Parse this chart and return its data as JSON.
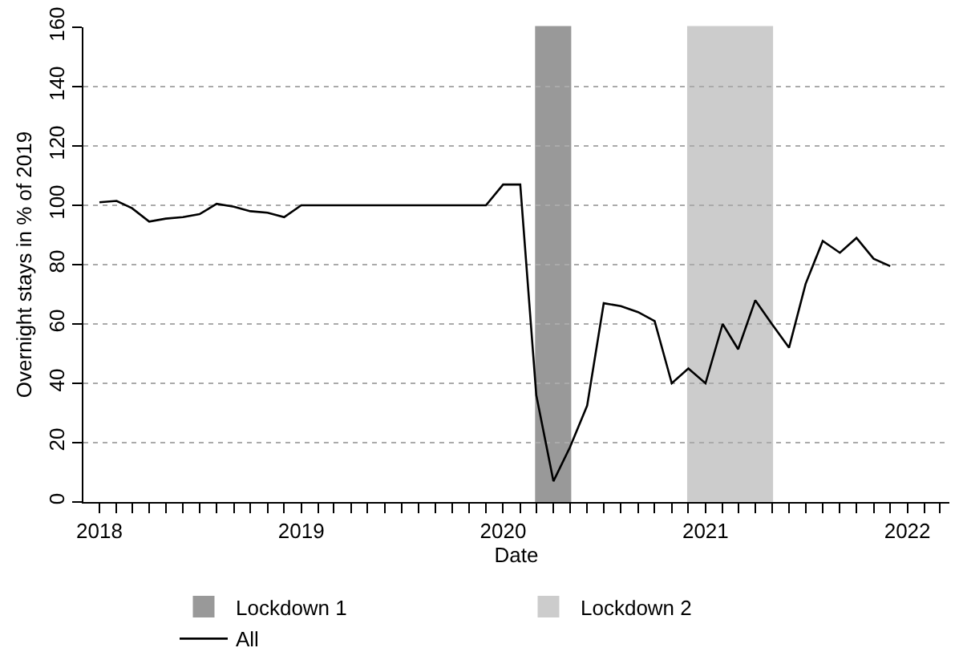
{
  "chart_data": {
    "type": "line",
    "xlabel": "Date",
    "ylabel": "Overnight stays in % of 2019",
    "x": [
      "2018-01",
      "2018-02",
      "2018-03",
      "2018-04",
      "2018-05",
      "2018-06",
      "2018-07",
      "2018-08",
      "2018-09",
      "2018-10",
      "2018-11",
      "2018-12",
      "2019-01",
      "2019-02",
      "2019-03",
      "2019-04",
      "2019-05",
      "2019-06",
      "2019-07",
      "2019-08",
      "2019-09",
      "2019-10",
      "2019-11",
      "2019-12",
      "2020-01",
      "2020-02",
      "2020-03",
      "2020-04",
      "2020-05",
      "2020-06",
      "2020-07",
      "2020-08",
      "2020-09",
      "2020-10",
      "2020-11",
      "2020-12",
      "2021-01",
      "2021-02",
      "2021-03",
      "2021-04",
      "2021-05",
      "2021-06",
      "2021-07",
      "2021-08",
      "2021-09",
      "2021-10",
      "2021-11",
      "2021-12"
    ],
    "series": [
      {
        "name": "All",
        "color": "#000000",
        "values": [
          101,
          101.5,
          99,
          94.5,
          95.5,
          96,
          97,
          100.5,
          99.5,
          98,
          97.5,
          96,
          100,
          100,
          100,
          100,
          100,
          100,
          100,
          100,
          100,
          100,
          100,
          100,
          107,
          107,
          36,
          7,
          18.5,
          32.5,
          67,
          66,
          64,
          61,
          40,
          45,
          40,
          60,
          51.5,
          68,
          60,
          52,
          73.5,
          88,
          84,
          89,
          82,
          79.5
        ]
      }
    ],
    "xlim": [
      "2017-12-03",
      "2022-03-18"
    ],
    "xticks": [
      {
        "value": "2018-01",
        "label": "2018"
      },
      {
        "value": "2018-02",
        "label": null
      },
      {
        "value": "2018-03",
        "label": null
      },
      {
        "value": "2018-04",
        "label": null
      },
      {
        "value": "2018-05",
        "label": null
      },
      {
        "value": "2018-06",
        "label": null
      },
      {
        "value": "2018-07",
        "label": null
      },
      {
        "value": "2018-08",
        "label": null
      },
      {
        "value": "2018-09",
        "label": null
      },
      {
        "value": "2018-10",
        "label": null
      },
      {
        "value": "2018-11",
        "label": null
      },
      {
        "value": "2018-12",
        "label": null
      },
      {
        "value": "2019-01",
        "label": "2019"
      },
      {
        "value": "2019-02",
        "label": null
      },
      {
        "value": "2019-03",
        "label": null
      },
      {
        "value": "2019-04",
        "label": null
      },
      {
        "value": "2019-05",
        "label": null
      },
      {
        "value": "2019-06",
        "label": null
      },
      {
        "value": "2019-07",
        "label": null
      },
      {
        "value": "2019-08",
        "label": null
      },
      {
        "value": "2019-09",
        "label": null
      },
      {
        "value": "2019-10",
        "label": null
      },
      {
        "value": "2019-11",
        "label": null
      },
      {
        "value": "2019-12",
        "label": null
      },
      {
        "value": "2020-01",
        "label": "2020"
      },
      {
        "value": "2020-02",
        "label": null
      },
      {
        "value": "2020-03",
        "label": null
      },
      {
        "value": "2020-04",
        "label": null
      },
      {
        "value": "2020-05",
        "label": null
      },
      {
        "value": "2020-06",
        "label": null
      },
      {
        "value": "2020-07",
        "label": null
      },
      {
        "value": "2020-08",
        "label": null
      },
      {
        "value": "2020-09",
        "label": null
      },
      {
        "value": "2020-10",
        "label": null
      },
      {
        "value": "2020-11",
        "label": null
      },
      {
        "value": "2020-12",
        "label": null
      },
      {
        "value": "2021-01",
        "label": "2021"
      },
      {
        "value": "2021-02",
        "label": null
      },
      {
        "value": "2021-03",
        "label": null
      },
      {
        "value": "2021-04",
        "label": null
      },
      {
        "value": "2021-05",
        "label": null
      },
      {
        "value": "2021-06",
        "label": null
      },
      {
        "value": "2021-07",
        "label": null
      },
      {
        "value": "2021-08",
        "label": null
      },
      {
        "value": "2021-09",
        "label": null
      },
      {
        "value": "2021-10",
        "label": null
      },
      {
        "value": "2021-11",
        "label": null
      },
      {
        "value": "2021-12",
        "label": null
      },
      {
        "value": "2022-01",
        "label": "2022"
      },
      {
        "value": "2022-02",
        "label": null
      },
      {
        "value": "2022-03",
        "label": null
      }
    ],
    "ylim": [
      0,
      160
    ],
    "yticks": [
      0,
      20,
      40,
      60,
      80,
      100,
      120,
      140,
      160
    ],
    "grid": "y",
    "legend": "bottom",
    "marker": "none",
    "line_style": "solid",
    "bands": [
      {
        "axis": "x",
        "from": "2020-03",
        "to": "2020-05",
        "label": "Lockdown 1",
        "color": "#999999"
      },
      {
        "axis": "x",
        "from": "2020-12",
        "to": "2021-05",
        "label": "Lockdown 2",
        "color": "#cccccc"
      }
    ]
  }
}
